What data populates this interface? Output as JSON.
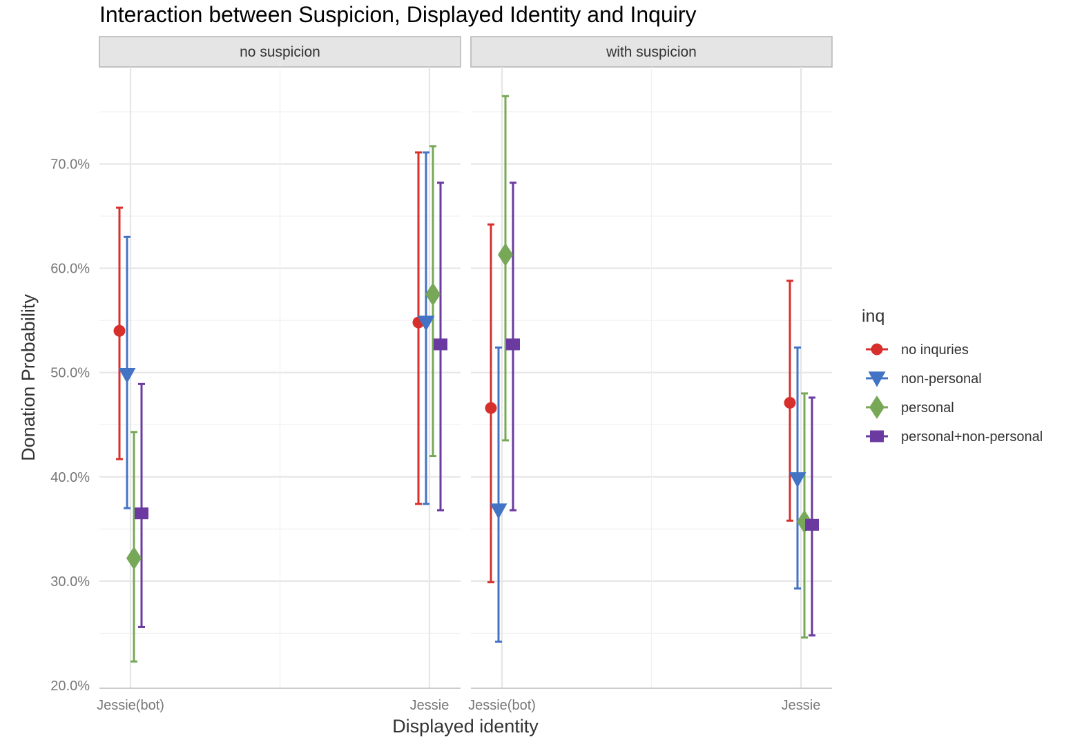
{
  "chart_data": {
    "type": "scatter",
    "title": "Interaction between Suspicion, Displayed Identity and Inquiry",
    "xlabel": "Displayed identity",
    "ylabel": "Donation Probability",
    "facets": [
      "no suspicion",
      "with suspicion"
    ],
    "categories": [
      "Jessie(bot)",
      "Jessie"
    ],
    "ylim": [
      0.2,
      0.77
    ],
    "yticks": [
      {
        "value": 0.2,
        "label": "20.0%"
      },
      {
        "value": 0.3,
        "label": "30.0%"
      },
      {
        "value": 0.4,
        "label": "40.0%"
      },
      {
        "value": 0.5,
        "label": "50.0%"
      },
      {
        "value": 0.6,
        "label": "60.0%"
      },
      {
        "value": 0.7,
        "label": "70.0%"
      }
    ],
    "grid": true,
    "legend": {
      "title": "inq",
      "position": "right"
    },
    "series": [
      {
        "name": "no inquries",
        "color": "#d7302c",
        "shape": "circle",
        "values": {
          "no suspicion": [
            {
              "x": "Jessie(bot)",
              "y": 0.54,
              "lower": 0.417,
              "upper": 0.658
            },
            {
              "x": "Jessie",
              "y": 0.548,
              "lower": 0.374,
              "upper": 0.711
            }
          ],
          "with suspicion": [
            {
              "x": "Jessie(bot)",
              "y": 0.466,
              "lower": 0.299,
              "upper": 0.642
            },
            {
              "x": "Jessie",
              "y": 0.471,
              "lower": 0.358,
              "upper": 0.588
            }
          ]
        }
      },
      {
        "name": "non-personal",
        "color": "#4373c4",
        "shape": "triangle-down",
        "values": {
          "no suspicion": [
            {
              "x": "Jessie(bot)",
              "y": 0.498,
              "lower": 0.37,
              "upper": 0.63
            },
            {
              "x": "Jessie",
              "y": 0.548,
              "lower": 0.374,
              "upper": 0.711
            }
          ],
          "with suspicion": [
            {
              "x": "Jessie(bot)",
              "y": 0.368,
              "lower": 0.242,
              "upper": 0.524
            },
            {
              "x": "Jessie",
              "y": 0.398,
              "lower": 0.293,
              "upper": 0.524
            }
          ]
        }
      },
      {
        "name": "personal",
        "color": "#77a857",
        "shape": "diamond",
        "values": {
          "no suspicion": [
            {
              "x": "Jessie(bot)",
              "y": 0.322,
              "lower": 0.223,
              "upper": 0.443
            },
            {
              "x": "Jessie",
              "y": 0.575,
              "lower": 0.42,
              "upper": 0.717
            }
          ],
          "with suspicion": [
            {
              "x": "Jessie(bot)",
              "y": 0.613,
              "lower": 0.435,
              "upper": 0.765
            },
            {
              "x": "Jessie",
              "y": 0.357,
              "lower": 0.246,
              "upper": 0.48
            }
          ]
        }
      },
      {
        "name": "personal+non-personal",
        "color": "#6a3aa0",
        "shape": "square",
        "values": {
          "no suspicion": [
            {
              "x": "Jessie(bot)",
              "y": 0.365,
              "lower": 0.256,
              "upper": 0.489
            },
            {
              "x": "Jessie",
              "y": 0.527,
              "lower": 0.368,
              "upper": 0.682
            }
          ],
          "with suspicion": [
            {
              "x": "Jessie(bot)",
              "y": 0.527,
              "lower": 0.368,
              "upper": 0.682
            },
            {
              "x": "Jessie",
              "y": 0.354,
              "lower": 0.248,
              "upper": 0.476
            }
          ]
        }
      }
    ]
  }
}
